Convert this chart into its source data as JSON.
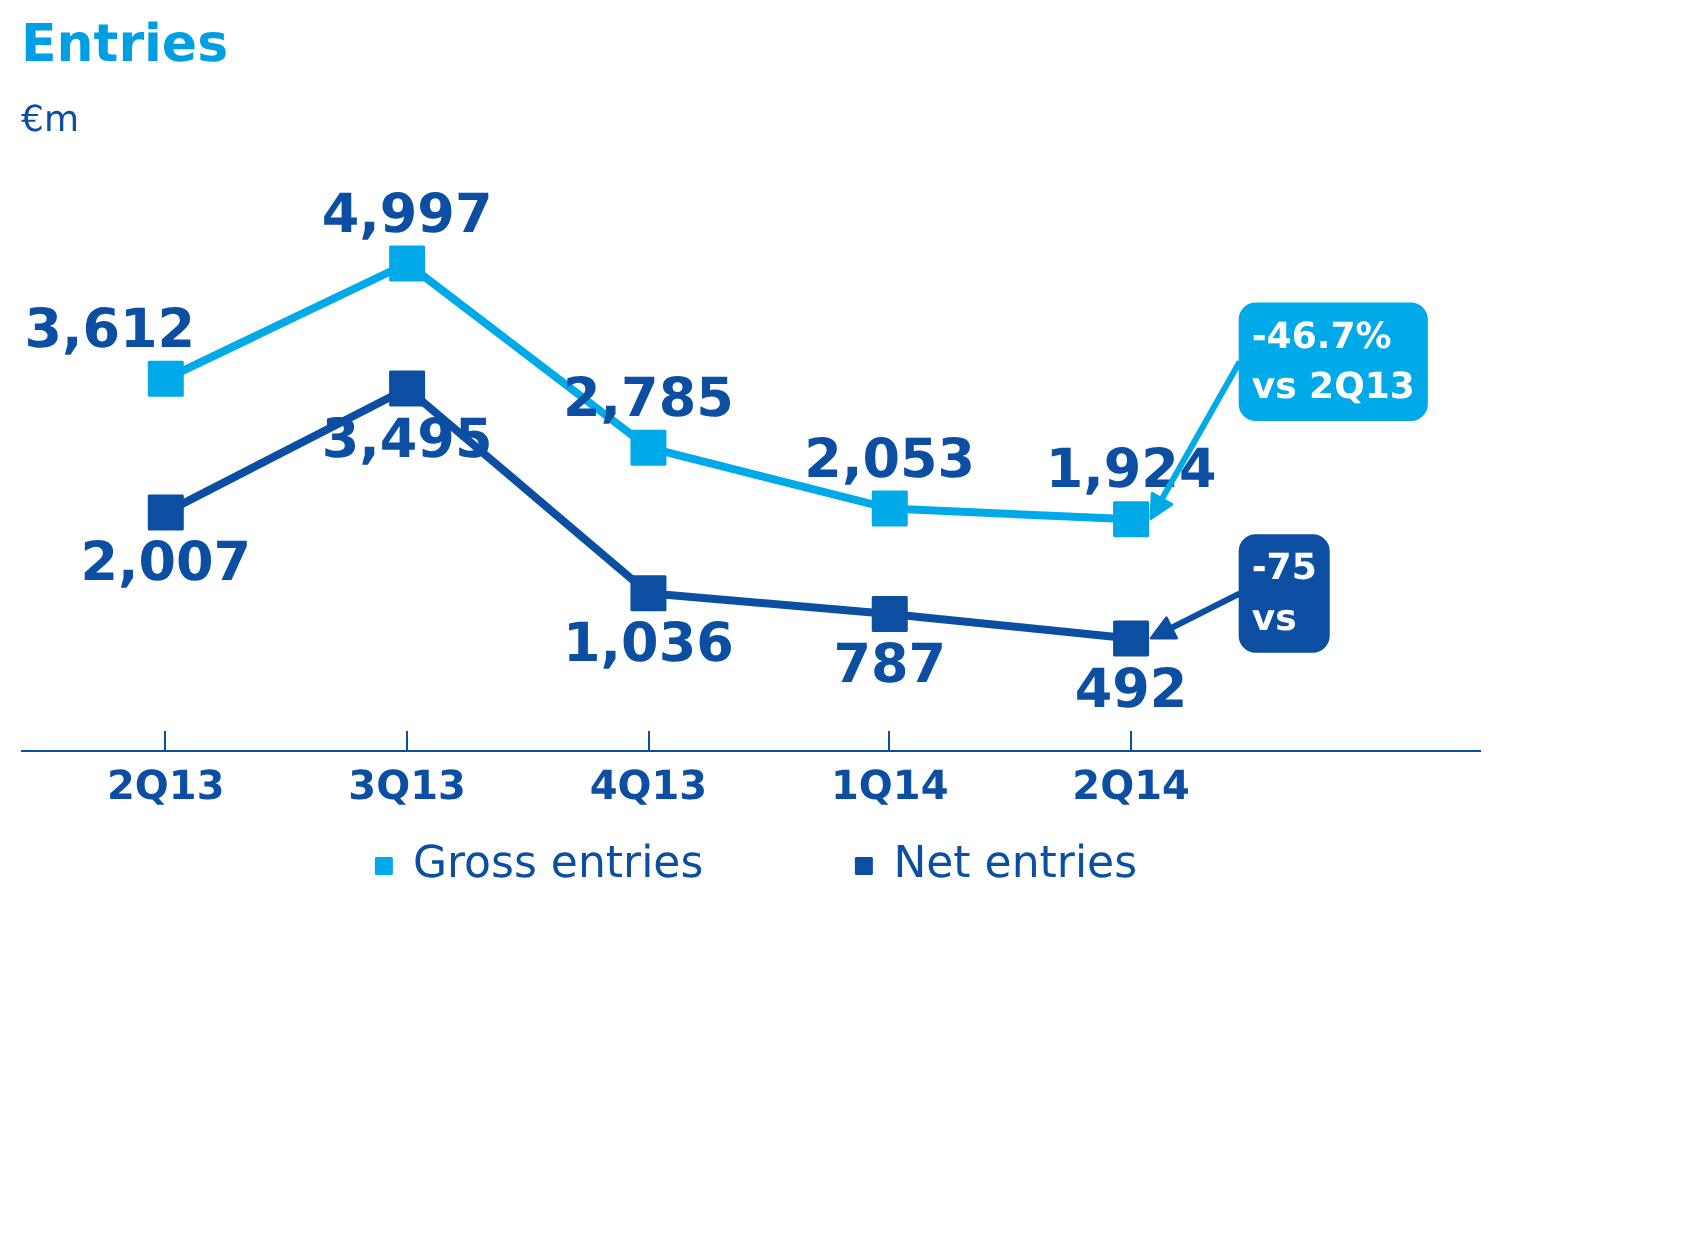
{
  "chart_data": {
    "type": "line",
    "title": "Entries",
    "subtitle": "€m",
    "categories": [
      "2Q13",
      "3Q13",
      "4Q13",
      "1Q14",
      "2Q14"
    ],
    "series": [
      {
        "name": "Gross entries",
        "color": "#00a9e8",
        "values": [
          3612,
          4997,
          2785,
          2053,
          1924
        ],
        "value_labels": [
          "3,612",
          "4,997",
          "2,785",
          "2,053",
          "1,924"
        ]
      },
      {
        "name": "Net entries",
        "color": "#0b4ea2",
        "values": [
          2007,
          3495,
          1036,
          787,
          492
        ],
        "value_labels": [
          "2,007",
          "3,495",
          "1,036",
          "787",
          "492"
        ]
      }
    ],
    "annotations": [
      "-46.7% vs 2Q13",
      "-75 vs"
    ],
    "marker": "square",
    "line_style": "solid",
    "legend": "bottom"
  }
}
